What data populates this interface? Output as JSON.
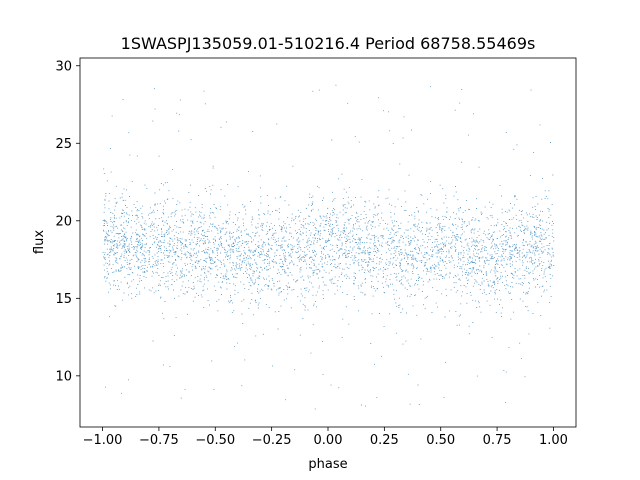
{
  "chart_data": {
    "type": "scatter",
    "title": "1SWASPJ135059.01-510216.4 Period 68758.55469s",
    "xlabel": "phase",
    "ylabel": "flux",
    "xlim": [
      -1.1,
      1.1
    ],
    "ylim": [
      6.7,
      30.5
    ],
    "xticks": [
      -1.0,
      -0.75,
      -0.5,
      -0.25,
      0.0,
      0.25,
      0.5,
      0.75,
      1.0
    ],
    "xtick_labels": [
      "−1.00",
      "−0.75",
      "−0.50",
      "−0.25",
      "0.00",
      "0.25",
      "0.50",
      "0.75",
      "1.00"
    ],
    "yticks": [
      10,
      15,
      20,
      25,
      30
    ],
    "ytick_labels": [
      "10",
      "15",
      "20",
      "25",
      "30"
    ],
    "grid": false,
    "series": [
      {
        "color": "#1f77b4",
        "x_range": [
          -1.0,
          1.0
        ],
        "mean_flux_profile": [
          {
            "x": -1.0,
            "y": 18.6
          },
          {
            "x": -0.75,
            "y": 18.4
          },
          {
            "x": -0.5,
            "y": 18.1
          },
          {
            "x": -0.3,
            "y": 17.6
          },
          {
            "x": -0.25,
            "y": 17.7
          },
          {
            "x": 0.0,
            "y": 18.4
          },
          {
            "x": 0.25,
            "y": 18.2
          },
          {
            "x": 0.5,
            "y": 18.0
          },
          {
            "x": 0.7,
            "y": 17.5
          },
          {
            "x": 0.75,
            "y": 17.7
          },
          {
            "x": 1.0,
            "y": 18.5
          }
        ],
        "core_band": [
          15.5,
          21.5
        ],
        "outlier_range": [
          7.8,
          29.0
        ]
      }
    ]
  }
}
